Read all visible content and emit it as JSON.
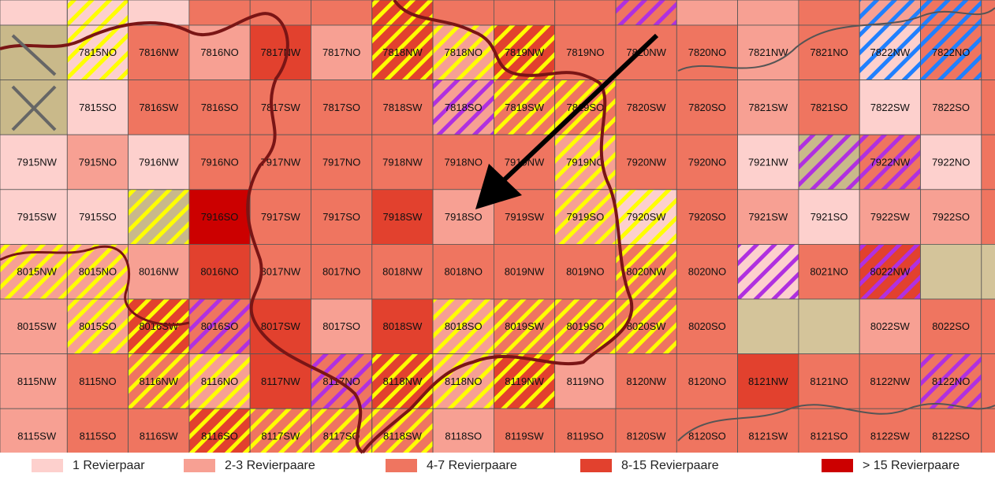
{
  "map": {
    "rows": [
      [
        {
          "fill": "#fdd0cd"
        },
        {
          "fill": "#fdd0cd",
          "hatch": "#ffff00"
        },
        {
          "fill": "#fdd0cd"
        },
        {
          "fill": "#ef7560"
        },
        {
          "fill": "#ef7560"
        },
        {
          "fill": "#ef7560"
        },
        {
          "fill": "#e2412e",
          "hatch": "#ffff00"
        },
        {
          "fill": "#ef7560"
        },
        {
          "fill": "#ef7560"
        },
        {
          "fill": "#ef7560"
        },
        {
          "fill": "#ef7560",
          "hatch": "#b030e0"
        },
        {
          "fill": "#f7a093"
        },
        {
          "fill": "#f7a093"
        },
        {
          "fill": "#ef7560"
        },
        {
          "fill": "#f7a093",
          "hatch": "#2080ff"
        },
        {
          "fill": "#ef7560",
          "hatch": "#2080ff"
        },
        {
          "fill": "#ef7560"
        }
      ],
      [
        {
          "fill": "#c9b98a"
        },
        {
          "label": "7815NO",
          "fill": "#fdd0cd",
          "hatch": "#ffff00"
        },
        {
          "label": "7816NW",
          "fill": "#ef7560"
        },
        {
          "label": "7816NO",
          "fill": "#f7a093"
        },
        {
          "label": "7817NW",
          "fill": "#e2412e"
        },
        {
          "label": "7817NO",
          "fill": "#f7a093"
        },
        {
          "label": "7818NW",
          "fill": "#e2412e",
          "hatch": "#ffff00"
        },
        {
          "label": "7818NO",
          "fill": "#f7a093",
          "hatch": "#ffff00"
        },
        {
          "label": "7819NW",
          "fill": "#e2412e",
          "hatch": "#ffff00"
        },
        {
          "label": "7819NO",
          "fill": "#ef7560"
        },
        {
          "label": "7820NW",
          "fill": "#ef7560"
        },
        {
          "label": "7820NO",
          "fill": "#ef7560"
        },
        {
          "label": "7821NW",
          "fill": "#f7a093"
        },
        {
          "label": "7821NO",
          "fill": "#ef7560"
        },
        {
          "label": "7822NW",
          "fill": "#fdd0cd",
          "hatch": "#2080ff"
        },
        {
          "label": "7822NO",
          "fill": "#ef7560",
          "hatch": "#2080ff"
        },
        {
          "fill": "#ef7560"
        }
      ],
      [
        {
          "fill": "#c9b98a"
        },
        {
          "label": "7815SO",
          "fill": "#fdd0cd"
        },
        {
          "label": "7816SW",
          "fill": "#ef7560"
        },
        {
          "label": "7816SO",
          "fill": "#ef7560"
        },
        {
          "label": "7817SW",
          "fill": "#ef7560"
        },
        {
          "label": "7817SO",
          "fill": "#ef7560"
        },
        {
          "label": "7818SW",
          "fill": "#ef7560"
        },
        {
          "label": "7818SO",
          "fill": "#f7a093",
          "hatch": "#b030e0"
        },
        {
          "label": "7819SW",
          "fill": "#ef7560",
          "hatch": "#ffff00"
        },
        {
          "label": "7819SO",
          "fill": "#ef7560",
          "hatch": "#ffff00"
        },
        {
          "label": "7820SW",
          "fill": "#ef7560"
        },
        {
          "label": "7820SO",
          "fill": "#ef7560"
        },
        {
          "label": "7821SW",
          "fill": "#f7a093"
        },
        {
          "label": "7821SO",
          "fill": "#ef7560"
        },
        {
          "label": "7822SW",
          "fill": "#fdd0cd"
        },
        {
          "label": "7822SO",
          "fill": "#f7a093"
        },
        {
          "fill": "#ef7560"
        }
      ],
      [
        {
          "label": "7915NW",
          "fill": "#fdd0cd"
        },
        {
          "label": "7915NO",
          "fill": "#f7a093"
        },
        {
          "label": "7916NW",
          "fill": "#fdd0cd"
        },
        {
          "label": "7916NO",
          "fill": "#ef7560"
        },
        {
          "label": "7917NW",
          "fill": "#ef7560"
        },
        {
          "label": "7917NO",
          "fill": "#ef7560"
        },
        {
          "label": "7918NW",
          "fill": "#ef7560"
        },
        {
          "label": "7918NO",
          "fill": "#ef7560"
        },
        {
          "label": "7919NW",
          "fill": "#ef7560"
        },
        {
          "label": "7919NO",
          "fill": "#f7a093",
          "hatch": "#ffff00"
        },
        {
          "label": "7920NW",
          "fill": "#ef7560"
        },
        {
          "label": "7920NO",
          "fill": "#ef7560"
        },
        {
          "label": "7921NW",
          "fill": "#fdd0cd"
        },
        {
          "fill": "#c9b98a",
          "hatch": "#b030e0"
        },
        {
          "label": "7922NW",
          "fill": "#ef7560",
          "hatch": "#b030e0"
        },
        {
          "label": "7922NO",
          "fill": "#fdd0cd"
        },
        {
          "fill": "#ef7560"
        }
      ],
      [
        {
          "label": "7915SW",
          "fill": "#fdd0cd"
        },
        {
          "label": "7915SO",
          "fill": "#fdd0cd"
        },
        {
          "fill": "#c9b98a",
          "hatch": "#ffff00"
        },
        {
          "label": "7916SO",
          "fill": "#cc0000"
        },
        {
          "label": "7917SW",
          "fill": "#ef7560"
        },
        {
          "label": "7917SO",
          "fill": "#ef7560"
        },
        {
          "label": "7918SW",
          "fill": "#e2412e"
        },
        {
          "label": "7918SO",
          "fill": "#f7a093"
        },
        {
          "label": "7919SW",
          "fill": "#ef7560"
        },
        {
          "label": "7919SO",
          "fill": "#f7a093",
          "hatch": "#ffff00"
        },
        {
          "label": "7920SW",
          "fill": "#fdd0cd",
          "hatch": "#ffff00"
        },
        {
          "label": "7920SO",
          "fill": "#ef7560"
        },
        {
          "label": "7921SW",
          "fill": "#f7a093"
        },
        {
          "label": "7921SO",
          "fill": "#fdd0cd"
        },
        {
          "label": "7922SW",
          "fill": "#f7a093"
        },
        {
          "label": "7922SO",
          "fill": "#f7a093"
        },
        {
          "fill": "#ef7560"
        }
      ],
      [
        {
          "label": "8015NW",
          "fill": "#f7a093",
          "hatch": "#ffff00"
        },
        {
          "label": "8015NO",
          "fill": "#f7a093",
          "hatch": "#ffff00"
        },
        {
          "label": "8016NW",
          "fill": "#f7a093"
        },
        {
          "label": "8016NO",
          "fill": "#e2412e"
        },
        {
          "label": "8017NW",
          "fill": "#ef7560"
        },
        {
          "label": "8017NO",
          "fill": "#ef7560"
        },
        {
          "label": "8018NW",
          "fill": "#ef7560"
        },
        {
          "label": "8018NO",
          "fill": "#ef7560"
        },
        {
          "label": "8019NW",
          "fill": "#ef7560"
        },
        {
          "label": "8019NO",
          "fill": "#ef7560"
        },
        {
          "label": "8020NW",
          "fill": "#ef7560",
          "hatch": "#ffff00"
        },
        {
          "label": "8020NO",
          "fill": "#ef7560"
        },
        {
          "fill": "#fdd0cd",
          "hatch": "#b030e0"
        },
        {
          "label": "8021NO",
          "fill": "#ef7560"
        },
        {
          "label": "8022NW",
          "fill": "#e2412e",
          "hatch": "#b030e0"
        },
        {
          "fill": "#d4c49a"
        },
        {
          "fill": "#d4c49a"
        }
      ],
      [
        {
          "label": "8015SW",
          "fill": "#f7a093"
        },
        {
          "label": "8015SO",
          "fill": "#f7a093",
          "hatch": "#ffff00"
        },
        {
          "label": "8016SW",
          "fill": "#e2412e",
          "hatch": "#ffff00"
        },
        {
          "label": "8016SO",
          "fill": "#ef7560",
          "hatch": "#b030e0"
        },
        {
          "label": "8017SW",
          "fill": "#e2412e"
        },
        {
          "label": "8017SO",
          "fill": "#f7a093"
        },
        {
          "label": "8018SW",
          "fill": "#e2412e"
        },
        {
          "label": "8018SO",
          "fill": "#f7a093",
          "hatch": "#ffff00"
        },
        {
          "label": "8019SW",
          "fill": "#ef7560",
          "hatch": "#ffff00"
        },
        {
          "label": "8019SO",
          "fill": "#ef7560",
          "hatch": "#ffff00"
        },
        {
          "label": "8020SW",
          "fill": "#ef7560",
          "hatch": "#ffff00"
        },
        {
          "label": "8020SO",
          "fill": "#ef7560"
        },
        {
          "fill": "#d4c49a"
        },
        {
          "fill": "#d4c49a"
        },
        {
          "label": "8022SW",
          "fill": "#f7a093"
        },
        {
          "label": "8022SO",
          "fill": "#ef7560"
        },
        {
          "fill": "#ef7560"
        }
      ],
      [
        {
          "label": "8115NW",
          "fill": "#f7a093"
        },
        {
          "label": "8115NO",
          "fill": "#ef7560"
        },
        {
          "label": "8116NW",
          "fill": "#ef7560",
          "hatch": "#ffff00"
        },
        {
          "label": "8116NO",
          "fill": "#f7a093",
          "hatch": "#ffff00"
        },
        {
          "label": "8117NW",
          "fill": "#e2412e"
        },
        {
          "label": "8117NO",
          "fill": "#ef7560",
          "hatch": "#b030e0"
        },
        {
          "label": "8118NW",
          "fill": "#e2412e",
          "hatch": "#ffff00"
        },
        {
          "label": "8118NO",
          "fill": "#f7a093",
          "hatch": "#ffff00"
        },
        {
          "label": "8119NW",
          "fill": "#e2412e",
          "hatch": "#ffff00"
        },
        {
          "label": "8119NO",
          "fill": "#f7a093"
        },
        {
          "label": "8120NW",
          "fill": "#ef7560"
        },
        {
          "label": "8120NO",
          "fill": "#ef7560"
        },
        {
          "label": "8121NW",
          "fill": "#e2412e"
        },
        {
          "label": "8121NO",
          "fill": "#ef7560"
        },
        {
          "label": "8122NW",
          "fill": "#ef7560"
        },
        {
          "label": "8122NO",
          "fill": "#ef7560",
          "hatch": "#b030e0"
        },
        {
          "fill": "#ef7560"
        }
      ],
      [
        {
          "label": "8115SW",
          "fill": "#f7a093"
        },
        {
          "label": "8115SO",
          "fill": "#ef7560"
        },
        {
          "label": "8116SW",
          "fill": "#ef7560"
        },
        {
          "label": "8116SO",
          "fill": "#e2412e",
          "hatch": "#ffff00"
        },
        {
          "label": "8117SW",
          "fill": "#ef7560",
          "hatch": "#ffff00"
        },
        {
          "label": "8117SO",
          "fill": "#ef7560",
          "hatch": "#ffff00"
        },
        {
          "label": "8118SW",
          "fill": "#ef7560",
          "hatch": "#ffff00"
        },
        {
          "label": "8118SO",
          "fill": "#f7a093"
        },
        {
          "label": "8119SW",
          "fill": "#ef7560"
        },
        {
          "label": "8119SO",
          "fill": "#ef7560"
        },
        {
          "label": "8120SW",
          "fill": "#ef7560"
        },
        {
          "label": "8120SO",
          "fill": "#ef7560"
        },
        {
          "label": "8121SW",
          "fill": "#ef7560"
        },
        {
          "label": "8121SO",
          "fill": "#ef7560"
        },
        {
          "label": "8122SW",
          "fill": "#ef7560"
        },
        {
          "label": "8122SO",
          "fill": "#ef7560"
        },
        {
          "fill": "#ef7560"
        }
      ]
    ]
  },
  "legend": [
    {
      "label": "1 Revierpaar",
      "color": "#fdd0cd"
    },
    {
      "label": "2-3 Revierpaare",
      "color": "#f7a093"
    },
    {
      "label": "4-7 Revierpaare",
      "color": "#ef7560"
    },
    {
      "label": "8-15 Revierpaare",
      "color": "#e2412e"
    },
    {
      "label": "> 15 Revierpaare",
      "color": "#cc0000"
    }
  ]
}
